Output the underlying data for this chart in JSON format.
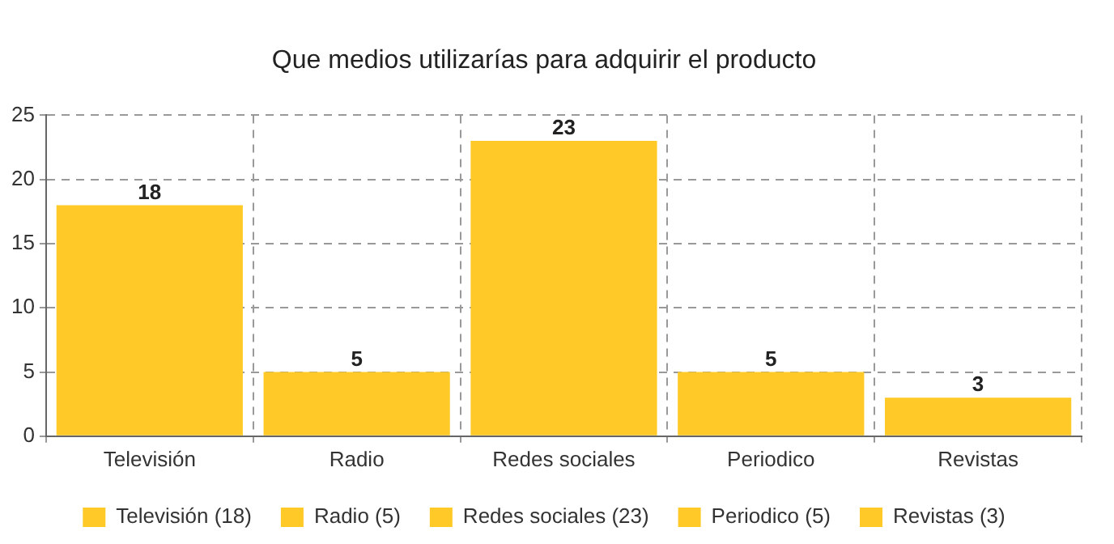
{
  "chart_data": {
    "type": "bar",
    "title": "Que medios utilizarías para adquirir el producto",
    "categories": [
      "Televisión",
      "Radio",
      "Redes sociales",
      "Periodico",
      "Revistas"
    ],
    "stacked": true,
    "series": [
      {
        "name": "Televisión (18)",
        "color": "#ffca28",
        "values": [
          18,
          null,
          null,
          null,
          null
        ]
      },
      {
        "name": "Radio (5)",
        "color": "#ffca28",
        "values": [
          null,
          5,
          null,
          null,
          null
        ]
      },
      {
        "name": "Redes sociales (23)",
        "color": "#ffca28",
        "values": [
          null,
          null,
          23,
          null,
          null
        ]
      },
      {
        "name": "Periodico (5)",
        "color": "#ffca28",
        "values": [
          null,
          null,
          null,
          5,
          null
        ]
      },
      {
        "name": "Revistas (3)",
        "color": "#ffca28",
        "values": [
          null,
          null,
          null,
          null,
          3
        ]
      }
    ],
    "ylim": [
      0,
      25
    ],
    "yticks": [
      0,
      5,
      10,
      15,
      20,
      25
    ],
    "grid": true,
    "data_labels": true,
    "legend": "bottom"
  }
}
